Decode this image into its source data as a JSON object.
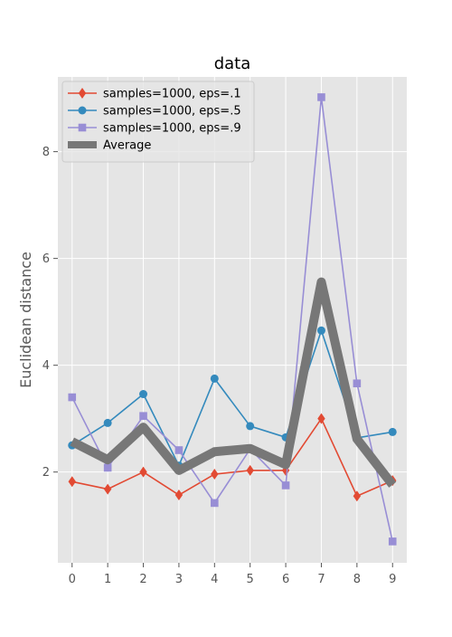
{
  "chart_data": {
    "type": "line",
    "title": "data",
    "xlabel": "",
    "ylabel": "Euclidean distance",
    "x": [
      0,
      1,
      2,
      3,
      4,
      5,
      6,
      7,
      8,
      9
    ],
    "xlim": [
      -0.4,
      9.4
    ],
    "ylim": [
      0.3,
      9.4
    ],
    "yticks": [
      2,
      4,
      6,
      8
    ],
    "grid": true,
    "legend_position": "upper-left",
    "series": [
      {
        "name": "samples=1000, eps=.1",
        "color": "#E24A33",
        "marker": "diamond",
        "values": [
          1.82,
          1.68,
          2.0,
          1.57,
          1.96,
          2.03,
          2.03,
          3.0,
          1.55,
          1.84
        ]
      },
      {
        "name": "samples=1000, eps=.5",
        "color": "#348ABD",
        "marker": "circle",
        "values": [
          2.5,
          2.92,
          3.46,
          2.12,
          3.75,
          2.86,
          2.65,
          4.65,
          2.64,
          2.75
        ]
      },
      {
        "name": "samples=1000, eps=.9",
        "color": "#988ED5",
        "marker": "square",
        "values": [
          3.4,
          2.08,
          3.05,
          2.41,
          1.42,
          2.43,
          1.75,
          9.02,
          3.66,
          0.7
        ]
      },
      {
        "name": "Average",
        "color": "#777777",
        "marker": "none",
        "thick": true,
        "values": [
          2.57,
          2.23,
          2.84,
          2.03,
          2.38,
          2.44,
          2.14,
          5.56,
          2.62,
          1.76
        ]
      }
    ]
  }
}
